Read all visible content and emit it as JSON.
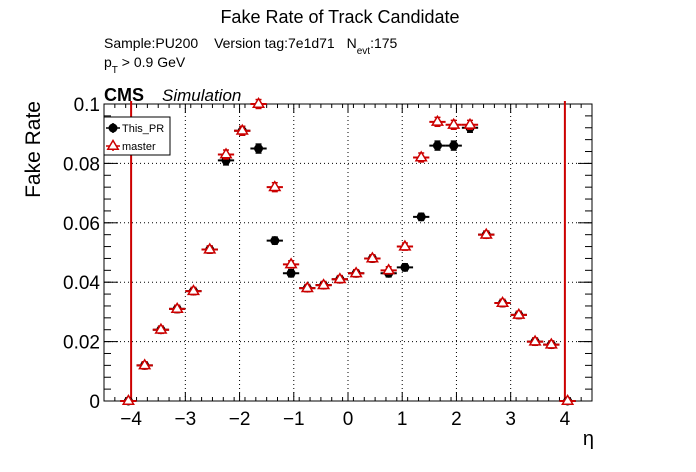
{
  "chart_data": {
    "type": "scatter",
    "title": "Fake Rate of Track Candidate",
    "info": {
      "sample": "Sample:PU200",
      "version_tag": "Version tag:7e1d71",
      "nevt_main": "N",
      "nevt_sub": "evt",
      "nevt_value": ":175",
      "pt_main": "p",
      "pt_sub": "T",
      "pt_value": " > 0.9 GeV"
    },
    "cms_label": "CMS",
    "cms_sub_label": "Simulation",
    "xlabel": "η",
    "ylabel": "Fake Rate",
    "xlim": [
      -4.5,
      4.5
    ],
    "ylim": [
      0,
      0.1
    ],
    "x_ticks": [
      -4,
      -3,
      -2,
      -1,
      0,
      1,
      2,
      3,
      4
    ],
    "y_ticks": [
      0,
      0.02,
      0.04,
      0.06,
      0.08,
      0.1
    ],
    "y_tick_labels": [
      "0",
      "0.02",
      "0.04",
      "0.06",
      "0.08",
      "0.1"
    ],
    "grid": true,
    "legend_position": "top-left",
    "vertical_lines_x": [
      -4,
      4
    ],
    "vertical_line_color": "#cc0000",
    "x_bin_halfwidth": 0.15,
    "series": [
      {
        "name": "This_PR",
        "color": "#000000",
        "marker": "filled-circle",
        "x": [
          -4.05,
          -3.75,
          -3.45,
          -3.15,
          -2.85,
          -2.55,
          -2.25,
          -1.95,
          -1.65,
          -1.35,
          -1.05,
          -0.75,
          -0.45,
          -0.15,
          0.15,
          0.45,
          0.75,
          1.05,
          1.35,
          1.65,
          1.95,
          2.25,
          2.55,
          2.85,
          3.15,
          3.45,
          3.75,
          4.05
        ],
        "y": [
          0.0,
          0.012,
          0.024,
          0.031,
          0.037,
          0.051,
          0.081,
          0.091,
          0.085,
          0.054,
          0.043,
          0.038,
          0.039,
          0.041,
          0.043,
          0.048,
          0.043,
          0.045,
          0.062,
          0.086,
          0.086,
          0.092,
          0.056,
          0.033,
          0.029,
          0.02,
          0.019,
          0.0
        ],
        "yerr": [
          0.0005,
          0.0012,
          0.0012,
          0.0012,
          0.0012,
          0.0012,
          0.0015,
          0.0015,
          0.0015,
          0.0012,
          0.0012,
          0.0012,
          0.0012,
          0.0012,
          0.0012,
          0.0012,
          0.0012,
          0.0012,
          0.0012,
          0.0015,
          0.0015,
          0.0015,
          0.0012,
          0.0012,
          0.0012,
          0.0012,
          0.0012,
          0.0005
        ]
      },
      {
        "name": "master",
        "color": "#cc0000",
        "marker": "open-triangle",
        "x": [
          -4.05,
          -3.75,
          -3.45,
          -3.15,
          -2.85,
          -2.55,
          -2.25,
          -1.95,
          -1.65,
          -1.35,
          -1.05,
          -0.75,
          -0.45,
          -0.15,
          0.15,
          0.45,
          0.75,
          1.05,
          1.35,
          1.65,
          1.95,
          2.25,
          2.55,
          2.85,
          3.15,
          3.45,
          3.75,
          4.05
        ],
        "y": [
          0.0,
          0.012,
          0.024,
          0.031,
          0.037,
          0.051,
          0.083,
          0.091,
          0.1,
          0.072,
          0.046,
          0.038,
          0.039,
          0.041,
          0.043,
          0.048,
          0.044,
          0.052,
          0.082,
          0.094,
          0.093,
          0.093,
          0.056,
          0.033,
          0.029,
          0.02,
          0.019,
          0.0
        ],
        "yerr": [
          0.0005,
          0.0012,
          0.0012,
          0.0012,
          0.0012,
          0.0012,
          0.0015,
          0.0015,
          0.0015,
          0.0015,
          0.0012,
          0.0012,
          0.0012,
          0.0012,
          0.0012,
          0.0012,
          0.0012,
          0.0012,
          0.0015,
          0.0015,
          0.0015,
          0.0015,
          0.0012,
          0.0012,
          0.0012,
          0.0012,
          0.0012,
          0.0005
        ]
      }
    ]
  }
}
